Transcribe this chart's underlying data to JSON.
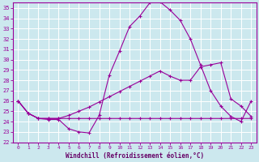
{
  "background_color": "#cce8ee",
  "grid_color": "#ffffff",
  "line_color": "#990099",
  "xlabel": "Windchill (Refroidissement éolien,°C)",
  "xlabel_color": "#660066",
  "xlim": [
    -0.5,
    23.5
  ],
  "ylim": [
    22,
    35.5
  ],
  "yticks": [
    22,
    23,
    24,
    25,
    26,
    27,
    28,
    29,
    30,
    31,
    32,
    33,
    34,
    35
  ],
  "xticks": [
    0,
    1,
    2,
    3,
    4,
    5,
    6,
    7,
    8,
    9,
    10,
    11,
    12,
    13,
    14,
    15,
    16,
    17,
    18,
    19,
    20,
    21,
    22,
    23
  ],
  "line1_x": [
    0,
    1,
    2,
    3,
    4,
    5,
    6,
    7,
    8,
    9,
    10,
    11,
    12,
    13,
    14,
    15,
    16,
    17,
    18,
    19,
    20,
    21,
    22,
    23
  ],
  "line1_y": [
    26.0,
    24.8,
    24.3,
    24.2,
    24.2,
    23.3,
    23.0,
    22.9,
    24.6,
    28.5,
    30.8,
    33.2,
    34.2,
    35.5,
    35.6,
    34.8,
    33.8,
    32.0,
    29.5,
    27.0,
    25.5,
    24.5,
    24.0,
    26.0
  ],
  "line2_x": [
    0,
    1,
    2,
    3,
    4,
    5,
    6,
    7,
    8,
    9,
    10,
    11,
    12,
    13,
    14,
    15,
    16,
    17,
    18,
    19,
    20,
    21,
    22,
    23
  ],
  "line2_y": [
    26.0,
    24.8,
    24.3,
    24.3,
    24.3,
    24.3,
    24.3,
    24.3,
    24.3,
    24.3,
    24.3,
    24.3,
    24.3,
    24.3,
    24.3,
    24.3,
    24.3,
    24.3,
    24.3,
    24.3,
    24.3,
    24.3,
    24.3,
    24.3
  ],
  "line3_x": [
    0,
    1,
    2,
    3,
    4,
    5,
    6,
    7,
    8,
    9,
    10,
    11,
    12,
    13,
    14,
    15,
    16,
    17,
    18,
    19,
    20,
    21,
    22,
    23
  ],
  "line3_y": [
    26.0,
    24.8,
    24.3,
    24.3,
    24.3,
    24.6,
    25.0,
    25.4,
    25.9,
    26.4,
    26.9,
    27.4,
    27.9,
    28.4,
    28.9,
    28.4,
    28.0,
    28.0,
    29.3,
    29.5,
    29.7,
    26.2,
    25.5,
    24.5
  ]
}
